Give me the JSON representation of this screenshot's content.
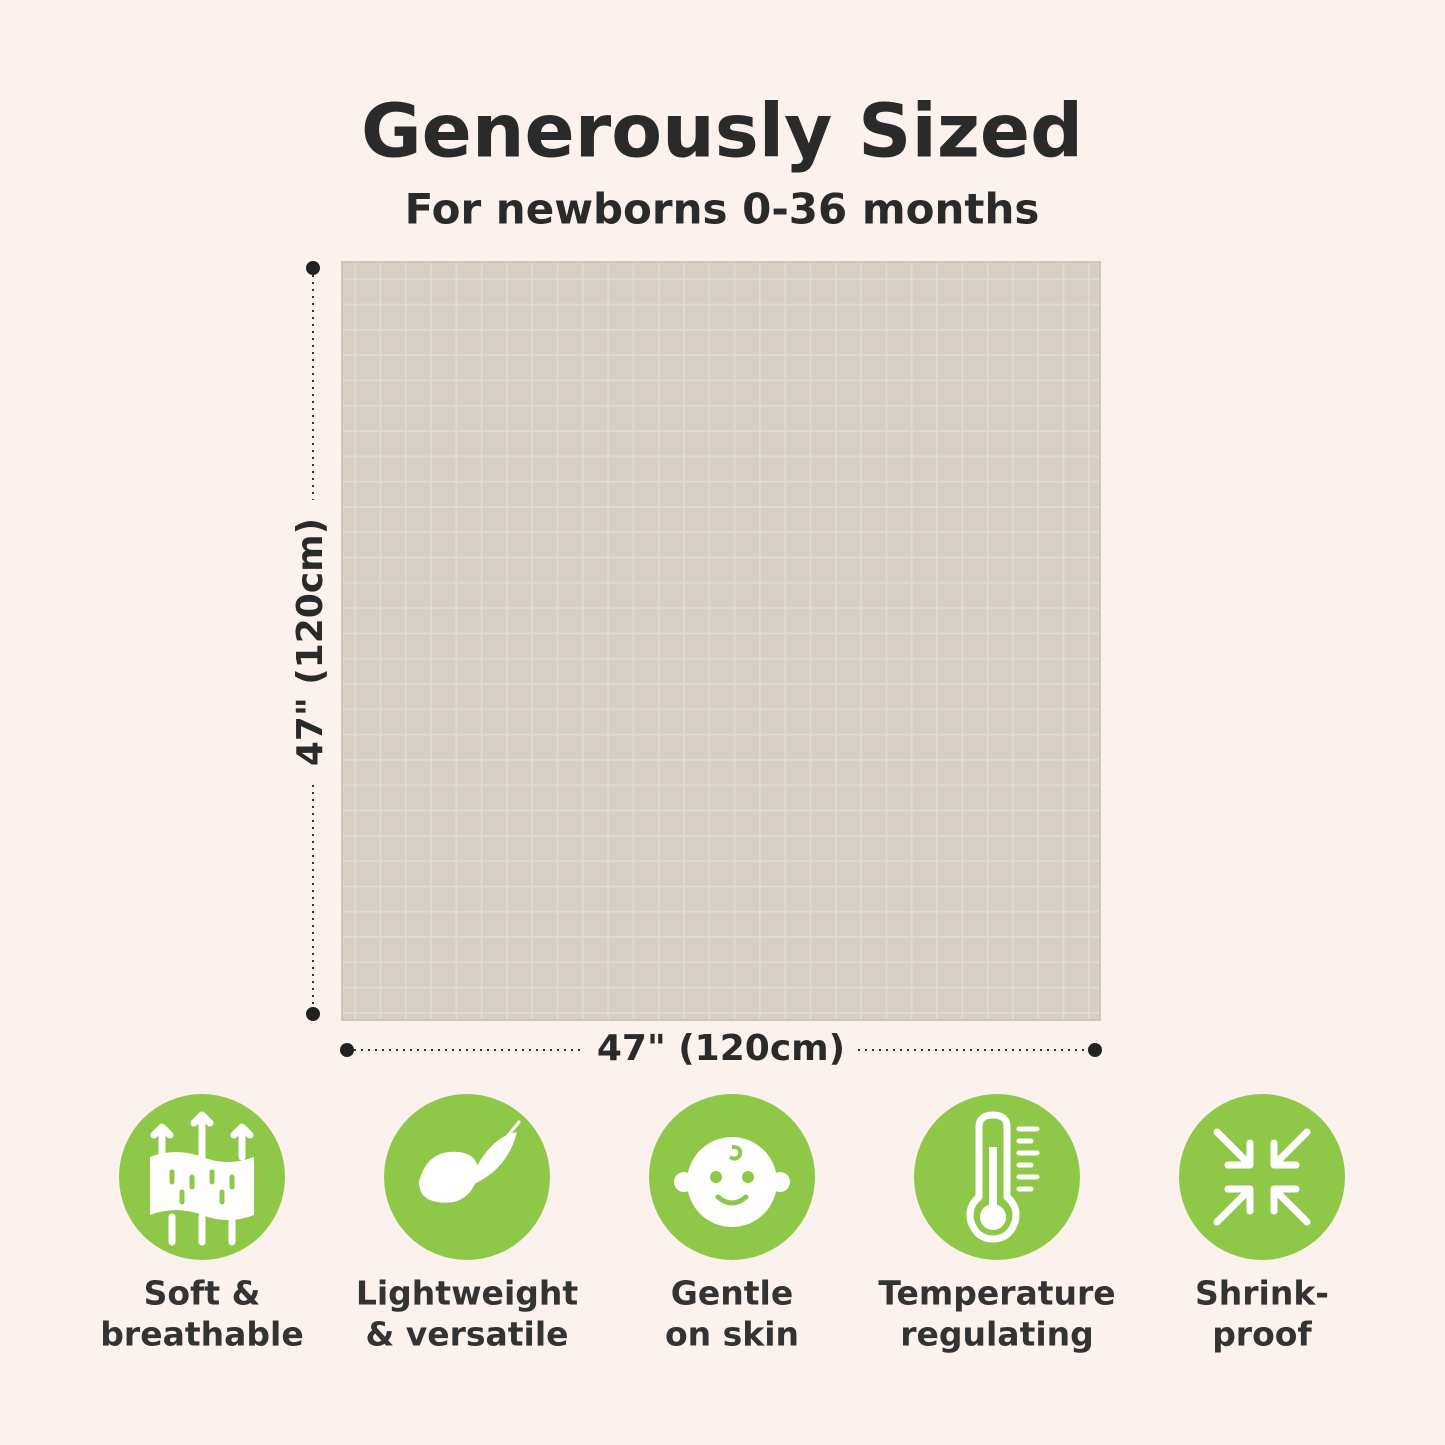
{
  "header": {
    "title": "Generously Sized",
    "subtitle": "For newborns 0-36 months"
  },
  "dimensions": {
    "height": "47\" (120cm)",
    "width": "47\" (120cm)"
  },
  "features": [
    {
      "lines": [
        "Soft &",
        "breathable"
      ]
    },
    {
      "lines": [
        "Lightweight",
        "& versatile"
      ]
    },
    {
      "lines": [
        "Gentle",
        "on skin"
      ]
    },
    {
      "lines": [
        "Temperature",
        "regulating"
      ]
    },
    {
      "lines": [
        "Shrink-",
        "proof"
      ]
    }
  ]
}
